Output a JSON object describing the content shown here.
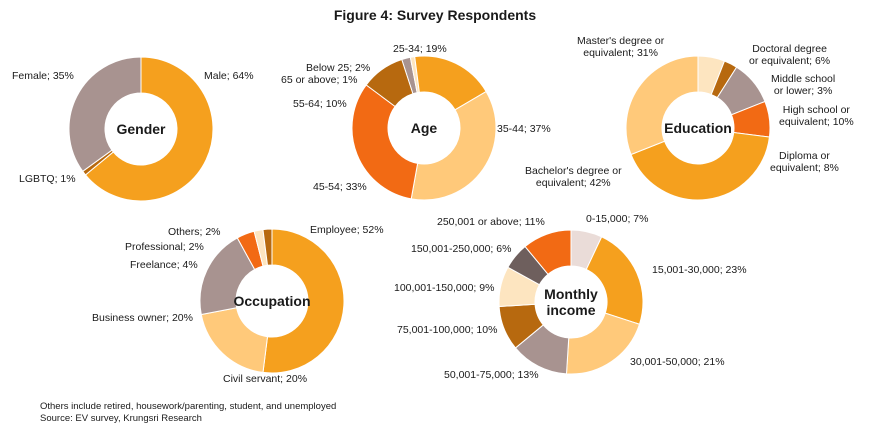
{
  "title": "Figure 4: Survey Respondents",
  "footnotes": {
    "others_note": "Others include retired, housework/parenting, student, and unemployed",
    "source": "Source: EV survey, Krungsri Research"
  },
  "colors": {
    "orange_dark": "#F39C12",
    "orange_main": "#F5A01E",
    "peach": "#FFC97A",
    "cream": "#FDE5C0",
    "red_orange": "#F26A14",
    "brown": "#B7690F",
    "taupe": "#A89390",
    "dark_taupe": "#6E5F5D",
    "light_pink": "#EADCD8"
  },
  "chart_data": [
    {
      "type": "pie",
      "title": "Gender",
      "categories": [
        "Male",
        "LGBTQ",
        "Female"
      ],
      "values": [
        64,
        1,
        35
      ],
      "labels": [
        "Male; 64%",
        "LGBTQ; 1%",
        "Female; 35%"
      ],
      "colors": [
        "#F5A01E",
        "#B7690F",
        "#A89390"
      ]
    },
    {
      "type": "pie",
      "title": "Age",
      "categories": [
        "25-34",
        "35-44",
        "45-54",
        "55-64",
        "65 or above",
        "Below 25"
      ],
      "values": [
        19,
        37,
        33,
        10,
        1,
        2
      ],
      "labels": [
        "25-34; 19%",
        "35-44; 37%",
        "45-54; 33%",
        "55-64; 10%",
        "65 or above; 1%",
        "Below 25; 2%"
      ],
      "colors": [
        "#F5A01E",
        "#FFC97A",
        "#F26A14",
        "#B7690F",
        "#FDE5C0",
        "#A89390"
      ],
      "note_order": "Below 25 then 25-34 clockwise from top"
    },
    {
      "type": "pie",
      "title": "Education",
      "categories": [
        "Doctoral degree or equivalent",
        "Middle school or lower",
        "High school or equivalent",
        "Diploma or equivalent",
        "Bachelor's degree or equivalent",
        "Master's degree or equivalent"
      ],
      "values": [
        6,
        3,
        10,
        8,
        42,
        31
      ],
      "labels": [
        "Doctoral degree\nor equivalent; 6%",
        "Middle school\nor lower; 3%",
        "High school or\nequivalent; 10%",
        "Diploma or\nequivalent; 8%",
        "Bachelor's degree or\nequivalent; 42%",
        "Master's degree or\nequivalent; 31%"
      ],
      "colors": [
        "#FDE5C0",
        "#B7690F",
        "#A89390",
        "#F26A14",
        "#F5A01E",
        "#FFC97A"
      ]
    },
    {
      "type": "pie",
      "title": "Occupation",
      "categories": [
        "Employee",
        "Civil servant",
        "Business owner",
        "Freelance",
        "Professional",
        "Others"
      ],
      "values": [
        52,
        20,
        20,
        4,
        2,
        2
      ],
      "labels": [
        "Employee; 52%",
        "Civil servant; 20%",
        "Business owner; 20%",
        "Freelance; 4%",
        "Professional; 2%",
        "Others; 2%"
      ],
      "colors": [
        "#F5A01E",
        "#FFC97A",
        "#A89390",
        "#F26A14",
        "#FDE5C0",
        "#B7690F"
      ]
    },
    {
      "type": "pie",
      "title": "Monthly\nincome",
      "categories": [
        "0-15,000",
        "15,001-30,000",
        "30,001-50,000",
        "50,001-75,000",
        "75,001-100,000",
        "100,001-150,000",
        "150,001-250,000",
        "250,001 or above"
      ],
      "values": [
        7,
        23,
        21,
        13,
        10,
        9,
        6,
        11
      ],
      "labels": [
        "0-15,000; 7%",
        "15,001-30,000; 23%",
        "30,001-50,000; 21%",
        "50,001-75,000; 13%",
        "75,001-100,000; 10%",
        "100,001-150,000; 9%",
        "150,001-250,000; 6%",
        "250,001 or above; 11%"
      ],
      "colors": [
        "#EADCD8",
        "#F5A01E",
        "#FFC97A",
        "#A89390",
        "#B7690F",
        "#FDE5C0",
        "#6E5F5D",
        "#F26A14"
      ]
    }
  ]
}
